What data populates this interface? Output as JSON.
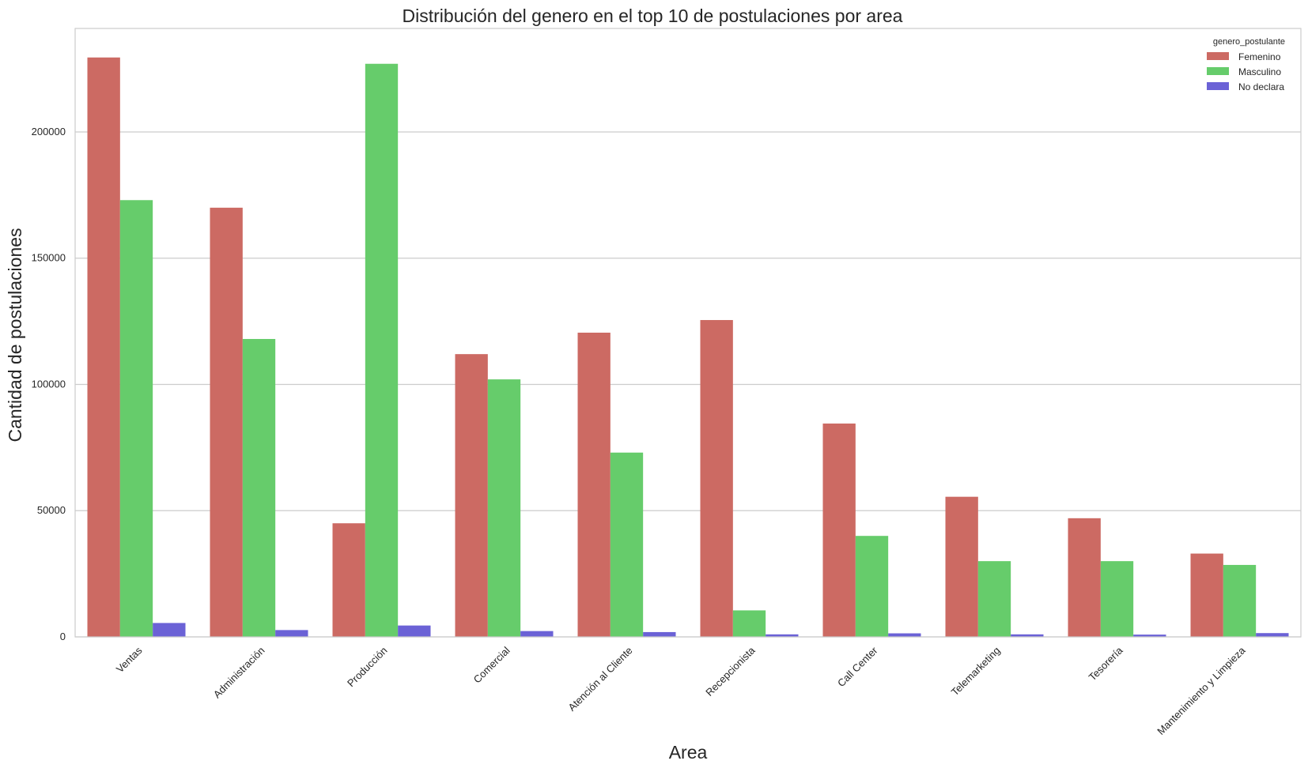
{
  "chart_data": {
    "type": "bar",
    "title": "Distribución del genero en el top 10 de postulaciones por area",
    "xlabel": "Area",
    "ylabel": "Cantidad de postulaciones",
    "ylim": [
      0,
      241000
    ],
    "yticks": [
      0,
      50000,
      100000,
      150000,
      200000
    ],
    "grid": true,
    "legend": {
      "title": "genero_postulante",
      "position": "top-right"
    },
    "categories": [
      "Ventas",
      "Administración",
      "Producción",
      "Comercial",
      "Atención al Cliente",
      "Recepcionista",
      "Call Center",
      "Telemarketing",
      "Tesorería",
      "Mantenimiento y Limpieza"
    ],
    "series": [
      {
        "name": "Femenino",
        "color": "#cc6a63",
        "values": [
          229500,
          170000,
          45000,
          112000,
          120500,
          125500,
          84500,
          55500,
          47000,
          33000
        ]
      },
      {
        "name": "Masculino",
        "color": "#66cc6b",
        "values": [
          173000,
          118000,
          227000,
          102000,
          73000,
          10500,
          40000,
          30000,
          30000,
          28500
        ]
      },
      {
        "name": "No declara",
        "color": "#6b62d6",
        "values": [
          5500,
          2700,
          4500,
          2300,
          1900,
          1000,
          1400,
          1000,
          900,
          1500
        ]
      }
    ]
  }
}
